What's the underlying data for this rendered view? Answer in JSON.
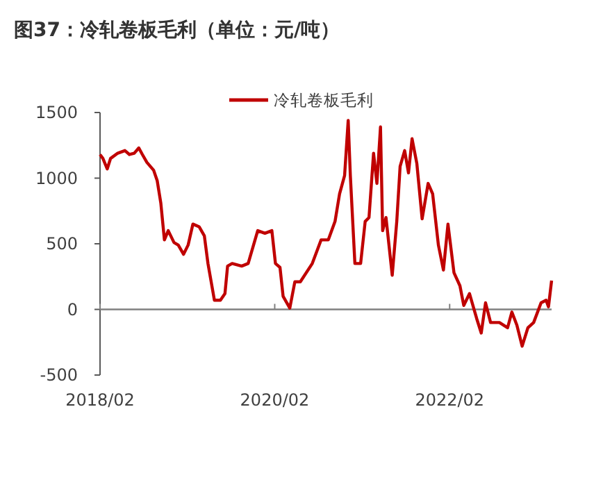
{
  "chart_data": {
    "type": "line",
    "title": "图37：冷轧卷板毛利（单位：元/吨）",
    "x": [
      "2018-02-01",
      "2018-02-13",
      "2018-03-03",
      "2018-03-17",
      "2018-04-16",
      "2018-05-16",
      "2018-06-04",
      "2018-06-24",
      "2018-07-13",
      "2018-07-28",
      "2018-08-16",
      "2018-09-13",
      "2018-09-28",
      "2018-10-13",
      "2018-10-28",
      "2018-11-13",
      "2018-12-07",
      "2018-12-25",
      "2019-01-16",
      "2019-02-04",
      "2019-02-24",
      "2019-03-22",
      "2019-04-13",
      "2019-04-28",
      "2019-05-25",
      "2019-06-19",
      "2019-07-08",
      "2019-07-19",
      "2019-08-07",
      "2019-09-16",
      "2019-10-13",
      "2019-11-22",
      "2019-12-22",
      "2020-01-20",
      "2020-02-04",
      "2020-02-23",
      "2020-03-07",
      "2020-04-04",
      "2020-04-25",
      "2020-05-18",
      "2020-07-07",
      "2020-08-13",
      "2020-09-12",
      "2020-10-10",
      "2020-10-29",
      "2020-11-19",
      "2020-12-04",
      "2020-12-13",
      "2021-01-01",
      "2021-01-25",
      "2021-02-13",
      "2021-03-01",
      "2021-03-20",
      "2021-04-03",
      "2021-04-18",
      "2021-04-27",
      "2021-05-11",
      "2021-06-06",
      "2021-06-25",
      "2021-07-09",
      "2021-07-28",
      "2021-08-13",
      "2021-08-28",
      "2021-09-17",
      "2021-10-09",
      "2021-11-03",
      "2021-11-22",
      "2021-12-16",
      "2022-01-06",
      "2022-01-25",
      "2022-02-19",
      "2022-03-16",
      "2022-04-01",
      "2022-04-25",
      "2022-05-25",
      "2022-06-13",
      "2022-07-01",
      "2022-07-22",
      "2022-08-28",
      "2022-10-01",
      "2022-10-19",
      "2022-11-09",
      "2022-12-01",
      "2022-12-25",
      "2023-01-18",
      "2023-02-18",
      "2023-03-11",
      "2023-03-21",
      "2023-04-03"
    ],
    "series": [
      {
        "name": "冷轧卷板毛利",
        "color": "#c00000",
        "values": [
          1180,
          1150,
          1070,
          1150,
          1190,
          1210,
          1180,
          1190,
          1230,
          1180,
          1120,
          1060,
          980,
          810,
          530,
          600,
          510,
          490,
          420,
          490,
          650,
          630,
          560,
          350,
          70,
          70,
          120,
          330,
          350,
          330,
          350,
          600,
          580,
          600,
          350,
          320,
          100,
          10,
          210,
          210,
          350,
          530,
          530,
          670,
          880,
          1020,
          1440,
          1020,
          350,
          350,
          670,
          700,
          1190,
          960,
          1390,
          600,
          700,
          260,
          670,
          1090,
          1210,
          1040,
          1300,
          1110,
          690,
          960,
          880,
          490,
          300,
          650,
          280,
          180,
          30,
          120,
          -70,
          -180,
          50,
          -100,
          -100,
          -140,
          -20,
          -120,
          -280,
          -140,
          -100,
          50,
          70,
          20,
          220
        ]
      }
    ],
    "xlim": [
      "2018-02-01",
      "2023-04-03"
    ],
    "xticks": [
      {
        "value": "2018-02-01",
        "label": "2018/02"
      },
      {
        "value": "2020-02-01",
        "label": "2020/02"
      },
      {
        "value": "2022-02-01",
        "label": "2022/02"
      }
    ],
    "ylim": [
      -500,
      1500
    ],
    "yticks": [
      -500,
      0,
      500,
      1000,
      1500
    ],
    "legend": "top",
    "marker": "none",
    "line_style": "solid"
  }
}
